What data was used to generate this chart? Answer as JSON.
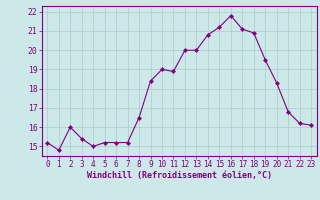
{
  "x": [
    0,
    1,
    2,
    3,
    4,
    5,
    6,
    7,
    8,
    9,
    10,
    11,
    12,
    13,
    14,
    15,
    16,
    17,
    18,
    19,
    20,
    21,
    22,
    23
  ],
  "y": [
    15.2,
    14.8,
    16.0,
    15.4,
    15.0,
    15.2,
    15.2,
    15.2,
    16.5,
    18.4,
    19.0,
    18.9,
    20.0,
    20.0,
    20.8,
    21.2,
    21.8,
    21.1,
    20.9,
    19.5,
    18.3,
    16.8,
    16.2,
    16.1
  ],
  "line_color": "#800080",
  "marker_color": "#800080",
  "bg_color": "#cce8e8",
  "grid_color": "#aacccc",
  "xlabel": "Windchill (Refroidissement éolien,°C)",
  "xlabel_color": "#800080",
  "tick_color": "#800080",
  "spine_color": "#800080",
  "ylim": [
    14.5,
    22.3
  ],
  "xlim": [
    -0.5,
    23.5
  ],
  "yticks": [
    15,
    16,
    17,
    18,
    19,
    20,
    21,
    22
  ],
  "xticks": [
    0,
    1,
    2,
    3,
    4,
    5,
    6,
    7,
    8,
    9,
    10,
    11,
    12,
    13,
    14,
    15,
    16,
    17,
    18,
    19,
    20,
    21,
    22,
    23
  ],
  "title_color": "#800080",
  "xlabel_fontsize": 6.0,
  "tick_fontsize": 5.5
}
